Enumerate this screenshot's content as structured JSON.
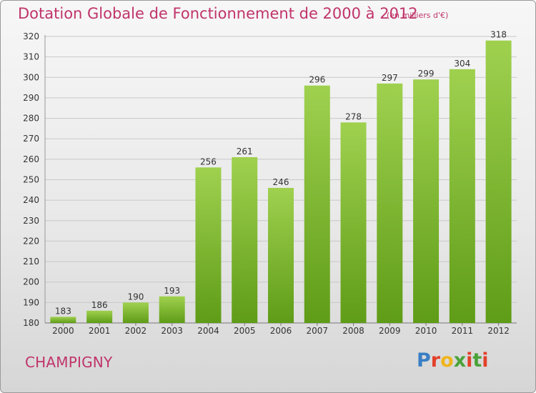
{
  "header": {
    "title": "Dotation Globale de Fonctionnement de 2000 à 2012",
    "unit": "(en milliers d'€)"
  },
  "footer": {
    "commune": "CHAMPIGNY",
    "logo_text": "Proxiti",
    "logo_letter_colors": [
      "#3a7fc4",
      "#e2412a",
      "#f0b51c",
      "#4aa339",
      "#e2412a",
      "#4aa339",
      "#e2412a"
    ]
  },
  "colors": {
    "title": "#c0346a",
    "bar_light": "#9fd14f",
    "bar_dark": "#5f9c17",
    "grid": "#c8c8c8",
    "axis_text": "#333333"
  },
  "chart_data": {
    "type": "bar",
    "title": "Dotation Globale de Fonctionnement de 2000 à 2012",
    "subtitle": "(en milliers d'€)",
    "categories": [
      "2000",
      "2001",
      "2002",
      "2003",
      "2004",
      "2005",
      "2006",
      "2007",
      "2008",
      "2009",
      "2010",
      "2011",
      "2012"
    ],
    "values": [
      183,
      186,
      190,
      193,
      256,
      261,
      246,
      296,
      278,
      297,
      299,
      304,
      318
    ],
    "ylim": [
      180,
      320
    ],
    "yticks": [
      180,
      190,
      200,
      210,
      220,
      230,
      240,
      250,
      260,
      270,
      280,
      290,
      300,
      310,
      320
    ],
    "grid": true,
    "data_labels": true
  }
}
